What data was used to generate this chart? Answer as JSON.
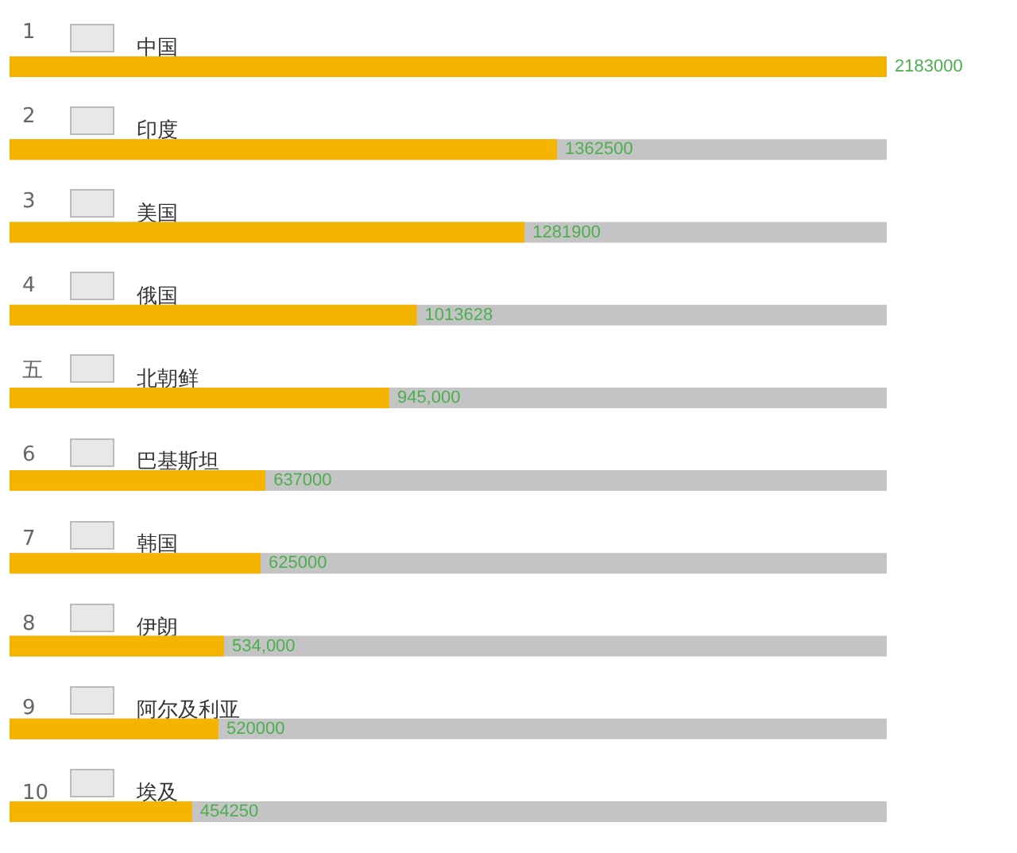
{
  "chart_data": {
    "type": "bar",
    "orientation": "horizontal",
    "categories": [
      "中国",
      "印度",
      "美国",
      "俄国",
      "北朝鲜",
      "巴基斯坦",
      "韩国",
      "伊朗",
      "阿尔及利亚",
      "埃及"
    ],
    "values": [
      2183000,
      1362500,
      1281900,
      1013628,
      945000,
      637000,
      625000,
      534000,
      520000,
      454250
    ],
    "value_labels": [
      "2183000",
      "1362500",
      "1281900",
      "1013628",
      "945,000",
      "637000",
      "625000",
      "534,000",
      "520000",
      "454250"
    ],
    "color": "#f5b400",
    "annotations": [
      "1",
      "2",
      "3",
      "4",
      "五",
      "6",
      "7",
      "8",
      "9",
      "10"
    ]
  }
}
